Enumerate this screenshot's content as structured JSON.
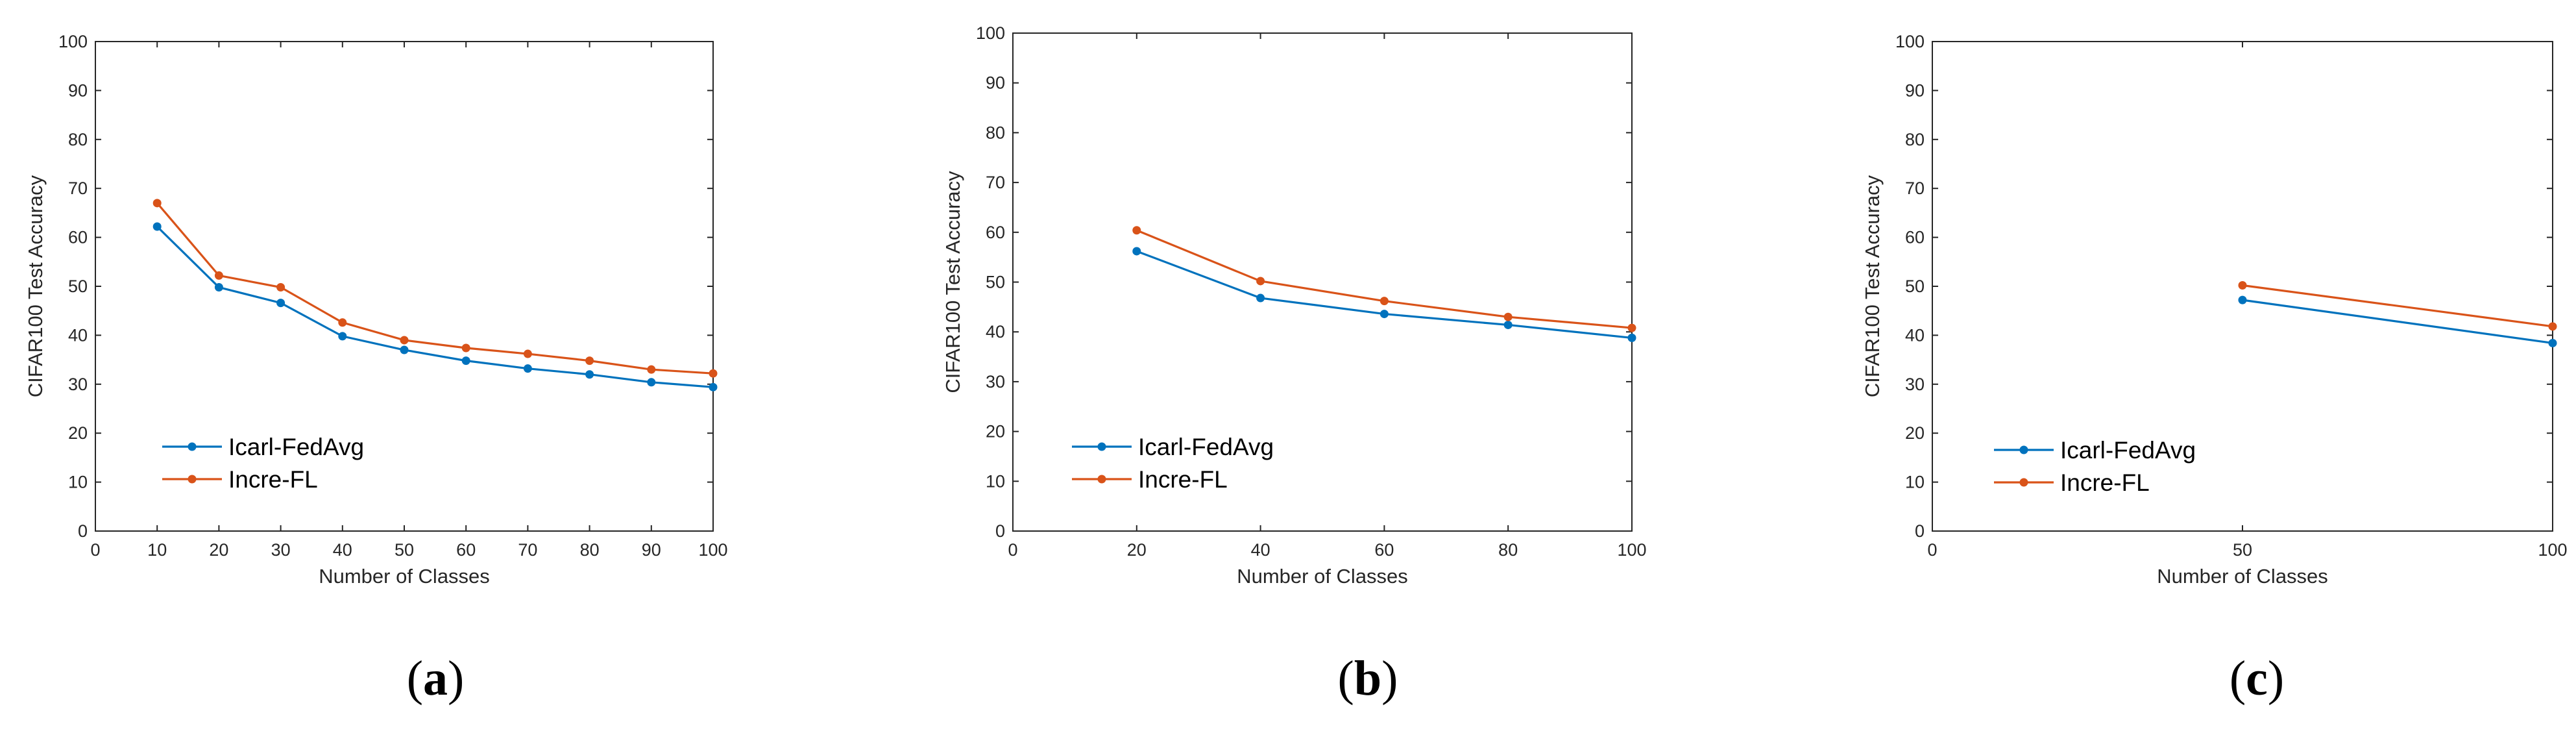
{
  "chart_data": [
    {
      "type": "line",
      "caption_letter": "a",
      "xlabel": "Number of Classes",
      "ylabel": "CIFAR100 Test Accuracy",
      "xlim": [
        0,
        100
      ],
      "ylim": [
        0,
        100
      ],
      "xticks": [
        0,
        10,
        20,
        30,
        40,
        50,
        60,
        70,
        80,
        90,
        100
      ],
      "yticks": [
        0,
        10,
        20,
        30,
        40,
        50,
        60,
        70,
        80,
        90,
        100
      ],
      "x": [
        10,
        20,
        30,
        40,
        50,
        60,
        70,
        80,
        90,
        100
      ],
      "series": [
        {
          "name": "Icarl-FedAvg",
          "color": "#0072BD",
          "values": [
            62.2,
            49.8,
            46.6,
            39.8,
            37.0,
            34.8,
            33.2,
            32.0,
            30.4,
            29.4
          ]
        },
        {
          "name": "Incre-FL",
          "color": "#D95319",
          "values": [
            67.0,
            52.2,
            49.8,
            42.6,
            39.0,
            37.4,
            36.2,
            34.8,
            33.0,
            32.2
          ]
        }
      ],
      "legend_position": "lower-left",
      "grid": false
    },
    {
      "type": "line",
      "caption_letter": "b",
      "xlabel": "Number of Classes",
      "ylabel": "CIFAR100 Test Accuracy",
      "xlim": [
        0,
        100
      ],
      "ylim": [
        0,
        100
      ],
      "xticks": [
        0,
        20,
        40,
        60,
        80,
        100
      ],
      "yticks": [
        0,
        10,
        20,
        30,
        40,
        50,
        60,
        70,
        80,
        90,
        100
      ],
      "x": [
        20,
        40,
        60,
        80,
        100
      ],
      "series": [
        {
          "name": "Icarl-FedAvg",
          "color": "#0072BD",
          "values": [
            56.2,
            46.8,
            43.6,
            41.4,
            38.8
          ]
        },
        {
          "name": "Incre-FL",
          "color": "#D95319",
          "values": [
            60.4,
            50.2,
            46.2,
            43.0,
            40.8
          ]
        }
      ],
      "legend_position": "lower-left",
      "grid": false
    },
    {
      "type": "line",
      "caption_letter": "c",
      "xlabel": "Number of Classes",
      "ylabel": "CIFAR100 Test Accuracy",
      "xlim": [
        0,
        100
      ],
      "ylim": [
        0,
        100
      ],
      "xticks": [
        0,
        50,
        100
      ],
      "yticks": [
        0,
        10,
        20,
        30,
        40,
        50,
        60,
        70,
        80,
        90,
        100
      ],
      "x": [
        50,
        100
      ],
      "series": [
        {
          "name": "Icarl-FedAvg",
          "color": "#0072BD",
          "values": [
            47.2,
            38.4
          ]
        },
        {
          "name": "Incre-FL",
          "color": "#D95319",
          "values": [
            50.2,
            41.8
          ]
        }
      ],
      "legend_position": "lower-left",
      "grid": false
    }
  ]
}
